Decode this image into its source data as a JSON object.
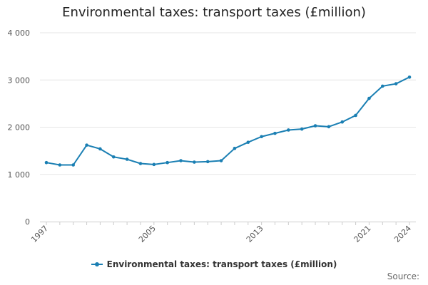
{
  "colors": {
    "series": "#1a7fb3",
    "grid": "#e6e6e6",
    "axis": "#cccccc"
  },
  "source_label": "Source:",
  "chart_data": {
    "type": "line",
    "title": "Environmental taxes: transport taxes (£million)",
    "xlabel": "",
    "ylabel": "",
    "x": [
      1997,
      1998,
      1999,
      2000,
      2001,
      2002,
      2003,
      2004,
      2005,
      2006,
      2007,
      2008,
      2009,
      2010,
      2011,
      2012,
      2013,
      2014,
      2015,
      2016,
      2017,
      2018,
      2019,
      2020,
      2021,
      2022,
      2023,
      2024
    ],
    "x_ticks": [
      1997,
      2005,
      2013,
      2021,
      2024
    ],
    "xlim": [
      1997,
      2024
    ],
    "ylim": [
      0,
      4000
    ],
    "y_ticks": [
      0,
      1000,
      2000,
      3000,
      4000
    ],
    "y_tick_labels": [
      "0",
      "1 000",
      "2 000",
      "3 000",
      "4 000"
    ],
    "grid": true,
    "legend_position": "bottom",
    "series": [
      {
        "name": "Environmental taxes: transport taxes (£million)",
        "values": [
          1250,
          1200,
          1200,
          1620,
          1540,
          1370,
          1320,
          1230,
          1210,
          1250,
          1290,
          1260,
          1270,
          1290,
          1550,
          1680,
          1800,
          1870,
          1940,
          1960,
          2030,
          2010,
          2110,
          2250,
          2610,
          2870,
          2920,
          3060
        ]
      }
    ]
  }
}
